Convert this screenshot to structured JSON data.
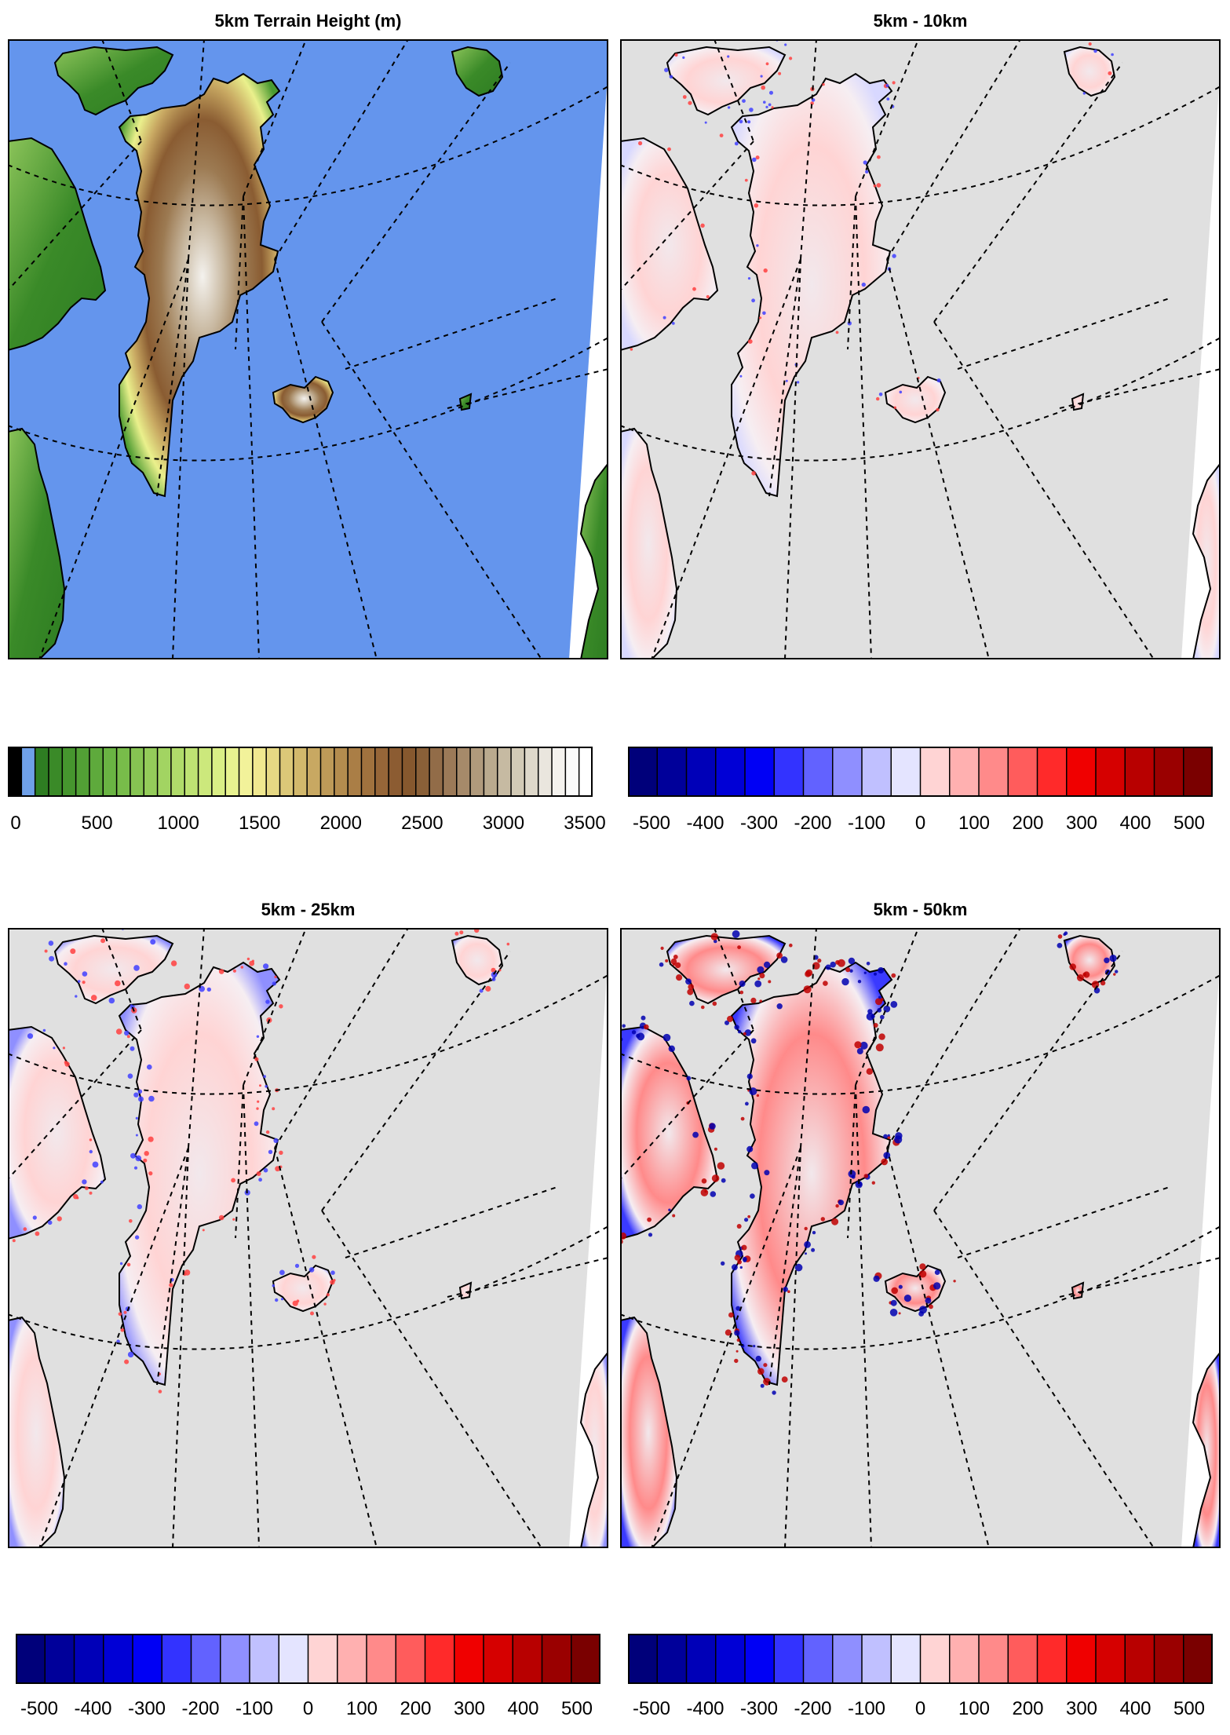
{
  "panels": [
    {
      "id": "terrain",
      "title": "5km Terrain Height (m)",
      "kind": "terrain"
    },
    {
      "id": "diff10",
      "title": "5km - 10km",
      "kind": "diff",
      "intensity": 0.35
    },
    {
      "id": "diff25",
      "title": "5km - 25km",
      "kind": "diff",
      "intensity": 0.6
    },
    {
      "id": "diff50",
      "title": "5km - 50km",
      "kind": "diff",
      "intensity": 0.9
    }
  ],
  "colorbars": [
    {
      "id": "terrain-cb",
      "labels": [
        "0",
        "500",
        "1000",
        "1500",
        "2000",
        "2500",
        "3000",
        "3500"
      ],
      "colors": [
        "#000000",
        "#6fa0e8",
        "#2e7d22",
        "#3a8a28",
        "#46952e",
        "#52a035",
        "#5eaa3c",
        "#6ab443",
        "#78bc4a",
        "#86c452",
        "#94cc5a",
        "#a2d462",
        "#b0db6a",
        "#bee273",
        "#cce87c",
        "#daee86",
        "#e8f290",
        "#f2f29a",
        "#f0e890",
        "#e6d884",
        "#dcc878",
        "#d2b86c",
        "#c8a862",
        "#be9a58",
        "#b48c4e",
        "#aa7e46",
        "#a0723e",
        "#966638",
        "#8c5c32",
        "#86582e",
        "#8a6038",
        "#926c48",
        "#9c7a58",
        "#a68a6a",
        "#b09a7c",
        "#baaa8e",
        "#c6baa2",
        "#d2cab6",
        "#ded8ca",
        "#eae6de",
        "#f4f2ee",
        "#fafafa",
        "#ffffff"
      ]
    },
    {
      "id": "diff-cb-1",
      "labels": [
        "-500",
        "-400",
        "-300",
        "-200",
        "-100",
        "0",
        "100",
        "200",
        "300",
        "400",
        "500"
      ],
      "colors": [
        "#00007a",
        "#00009a",
        "#0000b8",
        "#0000d6",
        "#0000f5",
        "#3333ff",
        "#6262ff",
        "#8f8fff",
        "#c0c0ff",
        "#e4e4ff",
        "#ffd4d4",
        "#ffb0b0",
        "#ff8a8a",
        "#ff5c5c",
        "#ff2a2a",
        "#f00000",
        "#d60000",
        "#b80000",
        "#9a0000",
        "#7a0000"
      ]
    },
    {
      "id": "diff-cb-2",
      "labels": [
        "-500",
        "-400",
        "-300",
        "-200",
        "-100",
        "0",
        "100",
        "200",
        "300",
        "400",
        "500"
      ],
      "colors": [
        "#00007a",
        "#00009a",
        "#0000b8",
        "#0000d6",
        "#0000f5",
        "#3333ff",
        "#6262ff",
        "#8f8fff",
        "#c0c0ff",
        "#e4e4ff",
        "#ffd4d4",
        "#ffb0b0",
        "#ff8a8a",
        "#ff5c5c",
        "#ff2a2a",
        "#f00000",
        "#d60000",
        "#b80000",
        "#9a0000",
        "#7a0000"
      ]
    },
    {
      "id": "diff-cb-3",
      "labels": [
        "-500",
        "-400",
        "-300",
        "-200",
        "-100",
        "0",
        "100",
        "200",
        "300",
        "400",
        "500"
      ],
      "colors": [
        "#00007a",
        "#00009a",
        "#0000b8",
        "#0000d6",
        "#0000f5",
        "#3333ff",
        "#6262ff",
        "#8f8fff",
        "#c0c0ff",
        "#e4e4ff",
        "#ffd4d4",
        "#ffb0b0",
        "#ff8a8a",
        "#ff5c5c",
        "#ff2a2a",
        "#f00000",
        "#d60000",
        "#b80000",
        "#9a0000",
        "#7a0000"
      ]
    }
  ],
  "colors": {
    "ocean": "#6495ed",
    "diff_background": "#e0e0e0",
    "outside_domain": "#ffffff"
  }
}
